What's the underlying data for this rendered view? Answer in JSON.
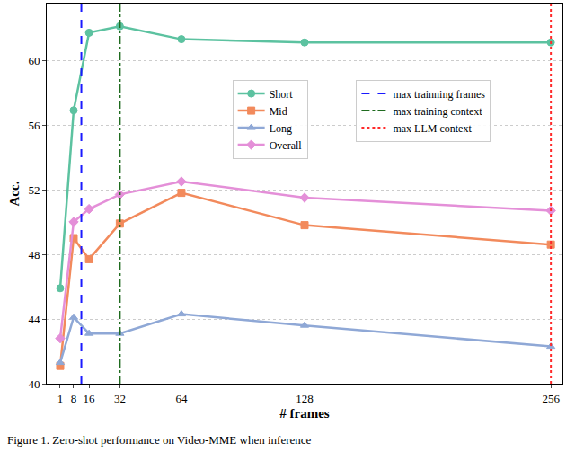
{
  "chart_data": {
    "type": "line",
    "x_label": "# frames",
    "y_label": "Acc.",
    "annotations": [
      "Figure 1. Zero-shot performance on Video-MME when inference"
    ],
    "x": [
      1,
      8,
      16,
      32,
      64,
      128,
      256
    ],
    "xlim": [
      -6,
      262
    ],
    "xticks": [
      1,
      8,
      16,
      32,
      64,
      128,
      256
    ],
    "ylim": [
      40,
      63.5
    ],
    "yticks": [
      40,
      44,
      48,
      52,
      56,
      60
    ],
    "grid": "y",
    "legend": "center",
    "series": [
      {
        "name": "Short",
        "color": "#5cc2a0",
        "marker": "circle-dot",
        "values": [
          45.9,
          56.9,
          61.7,
          62.1,
          61.3,
          61.1,
          61.1
        ]
      },
      {
        "name": "Mid",
        "color": "#f28a5c",
        "marker": "square",
        "values": [
          41.1,
          49.0,
          47.7,
          49.9,
          51.8,
          49.8,
          48.6
        ]
      },
      {
        "name": "Long",
        "color": "#8fa8d6",
        "marker": "triangle-up",
        "values": [
          41.3,
          44.1,
          43.1,
          43.1,
          44.3,
          43.6,
          42.3
        ]
      },
      {
        "name": "Overall",
        "color": "#e48fd8",
        "marker": "diamond",
        "values": [
          42.8,
          50.0,
          50.8,
          51.7,
          52.5,
          51.5,
          50.7
        ]
      },
      {
        "name": "max trainning frames",
        "type": "vline",
        "color": "#1a1aff",
        "line_style": "dashed",
        "x": 12
      },
      {
        "name": "max training context",
        "type": "vline",
        "color": "#1f6b1f",
        "line_style": "dashdot",
        "x": 32
      },
      {
        "name": "max LLM context",
        "type": "vline",
        "color": "#ff2a2a",
        "line_style": "dotted",
        "x": 256
      }
    ]
  }
}
